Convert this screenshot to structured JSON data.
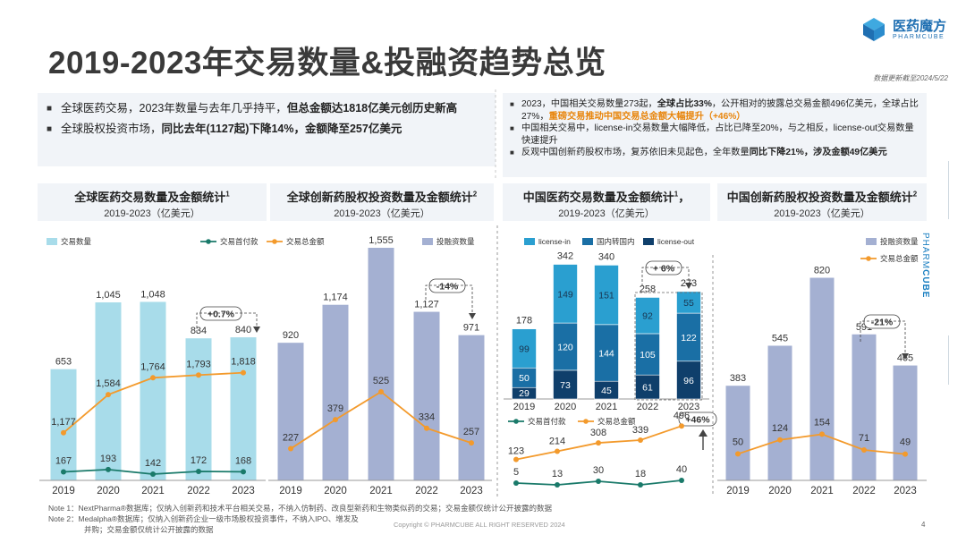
{
  "title": "2019-2023年交易数量&投融资趋势总览",
  "logo": {
    "cn": "医药魔方",
    "en": "PHARMCUBE"
  },
  "update_note": "数据更新截至2024/5/22",
  "side_brand": {
    "a": "PHARM",
    "b": "CUBE"
  },
  "left_bullets": [
    {
      "a": "全球医药交易，2023年数量与去年几乎持平，",
      "b": "但总金额达1818亿美元创历史新高"
    },
    {
      "a": "全球股权投资市场，",
      "b": "同比去年(1127起)下降14%，金额降至257亿美元"
    }
  ],
  "right_bullets": [
    {
      "a": "2023，中国相关交易数量273起，",
      "b": "全球占比33%",
      "c": "，公开相对的披露总交易金额496亿美元，全球占比27%，",
      "d": "重磅交易推动中国交易总金额大幅提升（+46%）"
    },
    {
      "a": "中国相关交易中，license-in交易数量大幅降低，占比已降至20%，与之相反，license-out交易数量快速提升"
    },
    {
      "a": "反观中国创新药股权市场，复苏依旧未见起色，全年数量",
      "b": "同比下降21%，涉及金额49亿美元"
    }
  ],
  "panels": [
    {
      "title": "全球医药交易数量及金额统计",
      "sup": "1",
      "sub": "2019-2023（亿美元）"
    },
    {
      "title": "全球创新药股权投资数量及金额统计",
      "sup": "2",
      "sub": "2019-2023（亿美元）"
    },
    {
      "title": "中国医药交易数量及金额统计",
      "sup": "1",
      "suffix": "，",
      "sub": "2019-2023（亿美元）"
    },
    {
      "title": "中国创新药股权投资数量及金额统计",
      "sup": "2",
      "sub": "2019-2023（亿美元）"
    }
  ],
  "notes": [
    "Note 1：NextPharma®数据库；仅纳入创新药和技术平台相关交易，不纳入仿制药、改良型新药和生物类似药的交易；交易金额仅统计公开披露的数据",
    "Note 2：Medalpha®数据库；仅纳入创新药企业一级市场股权投资事件，不纳入IPO、增发及",
    "并购；交易金额仅统计公开披露的数据"
  ],
  "copyright": "Copyright © PHARMCUBE ALL RIGHT RESERVED 2024",
  "page_number": "4",
  "colors": {
    "bar_light": "#a8dcea",
    "bar_purple": "#a4b0d2",
    "orange": "#f39a2c",
    "green": "#1a7a6a",
    "lic_in": "#2a9fd0",
    "domestic": "#1a6fa5",
    "lic_out": "#0f3f6b"
  },
  "chart_data": [
    {
      "type": "bar",
      "title": "全球医药交易数量及金额统计",
      "categories": [
        "2019",
        "2020",
        "2021",
        "2022",
        "2023"
      ],
      "series": [
        {
          "name": "交易数量",
          "values": [
            653,
            1045,
            1048,
            834,
            840
          ],
          "labels": [
            "653",
            "1,045",
            "1,048",
            "834",
            "840"
          ]
        },
        {
          "name": "交易首付款",
          "type": "line",
          "values": [
            167,
            193,
            142,
            172,
            168
          ]
        },
        {
          "name": "交易总金额",
          "type": "line",
          "values": [
            1177,
            1584,
            1764,
            1793,
            1818
          ]
        }
      ],
      "annotation": "+0.7%"
    },
    {
      "type": "bar",
      "title": "全球创新药股权投资数量及金额统计",
      "categories": [
        "2019",
        "2020",
        "2021",
        "2022",
        "2023"
      ],
      "series": [
        {
          "name": "投融资数量",
          "values": [
            920,
            1174,
            1555,
            1127,
            971
          ],
          "labels": [
            "920",
            "1,174",
            "1,555",
            "1,127",
            "971"
          ]
        },
        {
          "name": "交易总金额",
          "type": "line",
          "values": [
            227,
            379,
            525,
            334,
            257
          ]
        }
      ],
      "annotation": "-14%"
    },
    {
      "type": "bar",
      "stacked": true,
      "title": "中国医药交易数量及金额统计",
      "categories": [
        "2019",
        "2020",
        "2021",
        "2022",
        "2023"
      ],
      "series": [
        {
          "name": "license-in",
          "values": [
            99,
            149,
            151,
            92,
            55
          ]
        },
        {
          "name": "国内转国内",
          "values": [
            50,
            120,
            144,
            105,
            122
          ]
        },
        {
          "name": "license-out",
          "values": [
            29,
            73,
            45,
            61,
            96
          ]
        }
      ],
      "totals": [
        178,
        342,
        340,
        258,
        273
      ],
      "annotation": "+ 6%",
      "line_series": [
        {
          "name": "交易首付款",
          "values": [
            5,
            13,
            30,
            18,
            40
          ]
        },
        {
          "name": "交易总金额",
          "values": [
            123,
            214,
            308,
            339,
            496
          ]
        }
      ],
      "line_annotation": "+46%"
    },
    {
      "type": "bar",
      "title": "中国创新药股权投资数量及金额统计",
      "categories": [
        "2019",
        "2020",
        "2021",
        "2022",
        "2023"
      ],
      "series": [
        {
          "name": "投融资数量",
          "values": [
            383,
            545,
            820,
            591,
            465
          ]
        },
        {
          "name": "交易总金额",
          "type": "line",
          "values": [
            50,
            124,
            154,
            71,
            49
          ]
        }
      ],
      "annotation": "-21%"
    }
  ]
}
